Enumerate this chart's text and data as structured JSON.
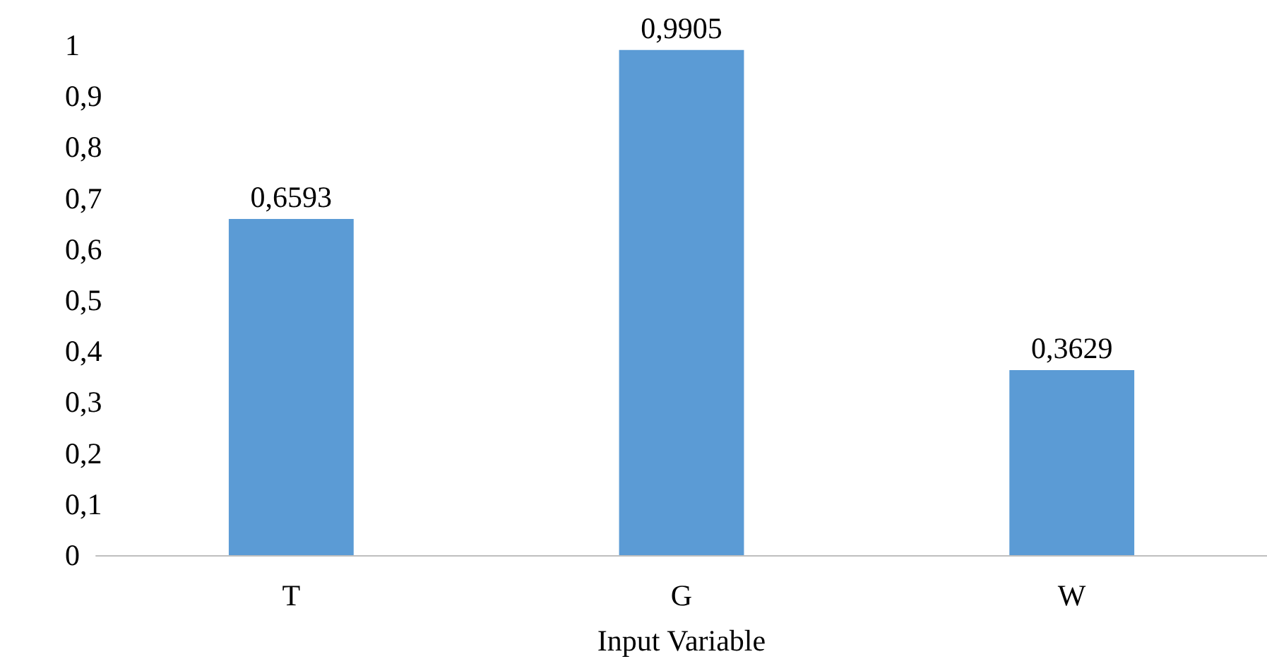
{
  "chart_data": {
    "type": "bar",
    "xlabel": "Input Variable",
    "categories": [
      "T",
      "G",
      "W"
    ],
    "values": [
      0.6593,
      0.9905,
      0.3629
    ],
    "value_labels": [
      "0,6593",
      "0,9905",
      "0,3629"
    ],
    "color": "#5b9bd5",
    "ylim": [
      0,
      1
    ],
    "yticks": [
      0,
      {
        "value": 0.1,
        "label": "0,1"
      },
      {
        "value": 0.2,
        "label": "0,2"
      },
      {
        "value": 0.3,
        "label": "0,3"
      },
      {
        "value": 0.4,
        "label": "0,4"
      },
      {
        "value": 0.5,
        "label": "0,5"
      },
      {
        "value": 0.6,
        "label": "0,6"
      },
      {
        "value": 0.7,
        "label": "0,7"
      },
      {
        "value": 0.8,
        "label": "0,8"
      },
      {
        "value": 0.9,
        "label": "0,9"
      },
      1
    ],
    "grid": false
  }
}
